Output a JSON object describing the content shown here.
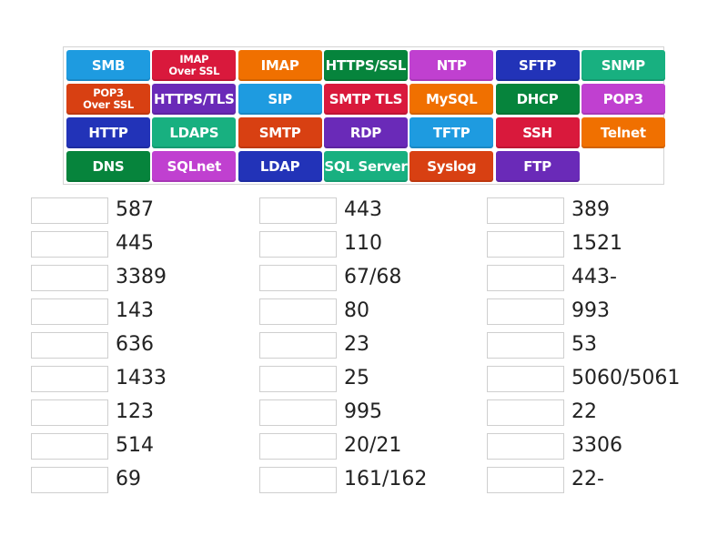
{
  "colors": {
    "blue": "#1e9be0",
    "red": "#d9193c",
    "orange": "#f07000",
    "green": "#06843c",
    "magenta": "#c040d0",
    "navy": "#2233b8",
    "teal": "#18b080",
    "redorange": "#d84012",
    "purple": "#6a2ab8"
  },
  "tiles": [
    [
      {
        "label": "SMB",
        "color": "blue"
      },
      {
        "label": "IMAP Over SSL",
        "color": "red",
        "small": true
      },
      {
        "label": "IMAP",
        "color": "orange"
      },
      {
        "label": "HTTPS/SSL",
        "color": "green"
      },
      {
        "label": "NTP",
        "color": "magenta"
      },
      {
        "label": "SFTP",
        "color": "navy"
      },
      {
        "label": "SNMP",
        "color": "teal"
      }
    ],
    [
      {
        "label": "POP3 Over SSL",
        "color": "redorange",
        "small": true
      },
      {
        "label": "HTTPS/TLS",
        "color": "purple"
      },
      {
        "label": "SIP",
        "color": "blue"
      },
      {
        "label": "SMTP TLS",
        "color": "red"
      },
      {
        "label": "MySQL",
        "color": "orange"
      },
      {
        "label": "DHCP",
        "color": "green"
      },
      {
        "label": "POP3",
        "color": "magenta"
      }
    ],
    [
      {
        "label": "HTTP",
        "color": "navy"
      },
      {
        "label": "LDAPS",
        "color": "teal"
      },
      {
        "label": "SMTP",
        "color": "redorange"
      },
      {
        "label": "RDP",
        "color": "purple"
      },
      {
        "label": "TFTP",
        "color": "blue"
      },
      {
        "label": "SSH",
        "color": "red"
      },
      {
        "label": "Telnet",
        "color": "orange"
      }
    ],
    [
      {
        "label": "DNS",
        "color": "green"
      },
      {
        "label": "SQLnet",
        "color": "magenta"
      },
      {
        "label": "LDAP",
        "color": "navy"
      },
      {
        "label": "SQL Server",
        "color": "teal"
      },
      {
        "label": "Syslog",
        "color": "redorange"
      },
      {
        "label": "FTP",
        "color": "purple"
      }
    ]
  ],
  "ports": [
    [
      "587",
      "445",
      "3389",
      "143",
      "636",
      "1433",
      "123",
      "514",
      "69"
    ],
    [
      "443",
      "110",
      "67/68",
      "80",
      "23",
      "25",
      "995",
      "20/21",
      "161/162"
    ],
    [
      "389",
      "1521",
      "443-",
      "993",
      "53",
      "5060/5061",
      "22",
      "3306",
      "22-"
    ]
  ]
}
